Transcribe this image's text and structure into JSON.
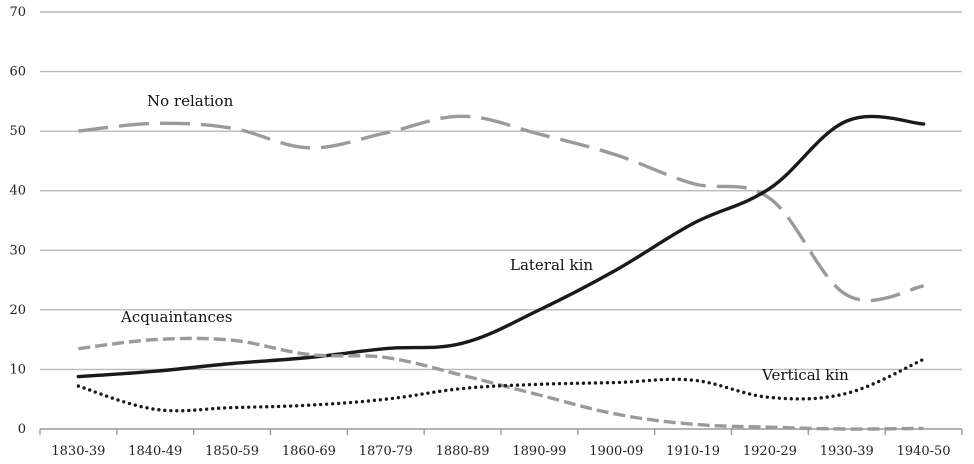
{
  "chart_data": {
    "type": "line",
    "title": "",
    "xlabel": "",
    "ylabel": "",
    "ylim": [
      0,
      70
    ],
    "yticks": [
      "0",
      "10",
      "20",
      "30",
      "40",
      "50",
      "60",
      "70"
    ],
    "categories": [
      "1830-39",
      "1840-49",
      "1850-59",
      "1860-69",
      "1870-79",
      "1880-89",
      "1890-99",
      "1900-09",
      "1910-19",
      "1920-29",
      "1930-39",
      "1940-50"
    ],
    "grid": true,
    "legend": "none (inline labels)",
    "series": [
      {
        "name": "No relation",
        "style": "long-dash",
        "color": "#9a9a9a",
        "values": [
          50.0,
          51.3,
          50.5,
          47.2,
          49.7,
          52.5,
          49.5,
          46.0,
          41.2,
          38.7,
          22.5,
          24.0
        ]
      },
      {
        "name": "Lateral kin",
        "style": "solid",
        "color": "#1a1a1a",
        "values": [
          8.8,
          9.7,
          11.0,
          12.0,
          13.5,
          14.4,
          20.0,
          26.7,
          34.5,
          40.4,
          51.7,
          51.2
        ]
      },
      {
        "name": "Acquaintances",
        "style": "short-dash",
        "color": "#9a9a9a",
        "values": [
          13.5,
          15.0,
          14.9,
          12.5,
          12.0,
          9.0,
          5.7,
          2.5,
          0.8,
          0.3,
          0.0,
          0.1
        ]
      },
      {
        "name": "Vertical kin",
        "style": "dotted",
        "color": "#1a1a1a",
        "values": [
          7.2,
          3.3,
          3.6,
          4.0,
          5.0,
          6.8,
          7.5,
          7.8,
          8.2,
          5.3,
          6.0,
          11.7
        ]
      }
    ]
  }
}
